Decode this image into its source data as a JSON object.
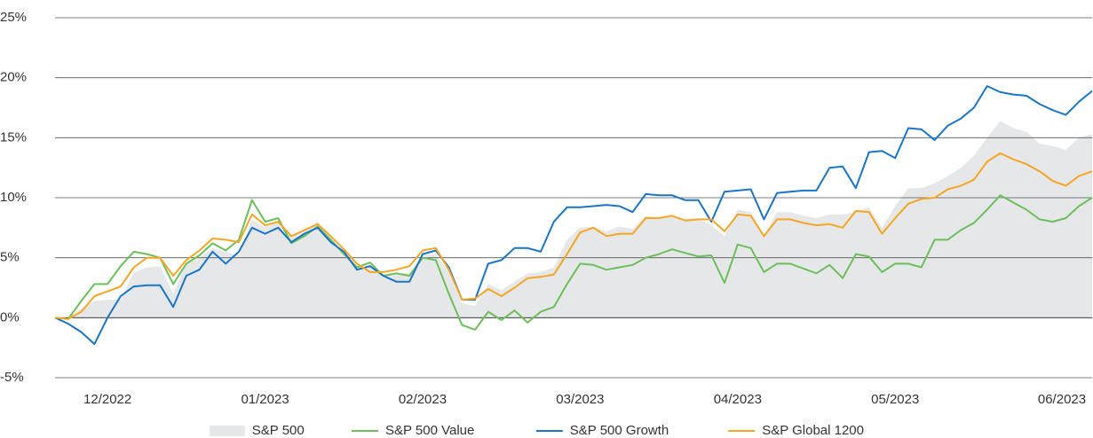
{
  "chart_data": {
    "type": "line",
    "categories": [
      null,
      null,
      null,
      null,
      "12/2022",
      null,
      null,
      null,
      null,
      null,
      null,
      null,
      null,
      null,
      null,
      null,
      "01/2023",
      null,
      null,
      null,
      null,
      null,
      null,
      null,
      null,
      null,
      null,
      null,
      "02/2023",
      null,
      null,
      null,
      null,
      null,
      null,
      null,
      null,
      null,
      null,
      null,
      "03/2023",
      null,
      null,
      null,
      null,
      null,
      null,
      null,
      null,
      null,
      null,
      null,
      "04/2023",
      null,
      null,
      null,
      null,
      null,
      null,
      null,
      null,
      null,
      null,
      null,
      "05/2023",
      null,
      null,
      null,
      null,
      null,
      null,
      null,
      null,
      null,
      null,
      null,
      null,
      "06/2023",
      null,
      null
    ],
    "ylim": [
      -5,
      25
    ],
    "yticks": [
      {
        "value": -5,
        "label": "-5%"
      },
      {
        "value": 0,
        "label": "0%"
      },
      {
        "value": 5,
        "label": "5%"
      },
      {
        "value": 10,
        "label": "10%"
      },
      {
        "value": 15,
        "label": "15%"
      },
      {
        "value": 20,
        "label": "20%"
      },
      {
        "value": 25,
        "label": "25%"
      }
    ],
    "grid": true,
    "legend": "bottom",
    "series": [
      {
        "name": "S&P 500",
        "color": "#e6e7e9",
        "area": true,
        "values": [
          0,
          0,
          0.8,
          1.4,
          1.5,
          1.5,
          3.8,
          4.2,
          4.3,
          2.0,
          4.5,
          5.0,
          5.8,
          5.5,
          5.2,
          8.2,
          7.5,
          8.0,
          6.7,
          7.3,
          8.0,
          6.7,
          5.3,
          4.2,
          4.3,
          3.6,
          3.7,
          3.7,
          5.2,
          5.3,
          3.8,
          1.2,
          1.0,
          2.8,
          2.3,
          3.0,
          3.7,
          3.8,
          4.2,
          6.5,
          7.5,
          7.6,
          7.2,
          7.6,
          7.4,
          8.5,
          8.3,
          8.5,
          8.2,
          8.3,
          7.7,
          6.8,
          9.0,
          8.8,
          6.8,
          8.8,
          8.8,
          8.5,
          8.3,
          8.6,
          8.6,
          8.8,
          9.2,
          7.5,
          9.3,
          10.8,
          10.8,
          11.2,
          11.8,
          12.5,
          13.5,
          15.0,
          16.4,
          15.8,
          15.5,
          14.5,
          14.3,
          14.0,
          15.0,
          15.3
        ]
      },
      {
        "name": "S&P 500 Value",
        "color": "#6cbf5b",
        "values": [
          0,
          -0.1,
          1.4,
          2.8,
          2.8,
          4.3,
          5.5,
          5.3,
          5.0,
          2.8,
          4.5,
          5.2,
          6.2,
          5.6,
          6.5,
          9.8,
          8.0,
          8.3,
          6.2,
          6.8,
          7.6,
          6.5,
          5.3,
          4.2,
          4.6,
          3.5,
          3.7,
          3.5,
          5.0,
          4.8,
          2.0,
          -0.6,
          -1.0,
          0.5,
          -0.2,
          0.6,
          -0.4,
          0.5,
          0.9,
          2.8,
          4.5,
          4.4,
          4.0,
          4.2,
          4.4,
          5.0,
          5.3,
          5.7,
          5.4,
          5.1,
          5.2,
          2.9,
          6.1,
          5.8,
          3.8,
          4.5,
          4.5,
          4.1,
          3.7,
          4.4,
          3.3,
          5.3,
          5.1,
          3.8,
          4.5,
          4.5,
          4.2,
          6.5,
          6.5,
          7.3,
          7.9,
          9.0,
          10.2,
          9.6,
          9.0,
          8.2,
          8.0,
          8.3,
          9.3,
          10.0
        ]
      },
      {
        "name": "S&P 500 Growth",
        "color": "#1a75c7",
        "values": [
          0,
          -0.5,
          -1.2,
          -2.2,
          0,
          1.8,
          2.6,
          2.7,
          2.7,
          0.9,
          3.5,
          4.0,
          5.5,
          4.5,
          5.5,
          7.5,
          7.0,
          7.5,
          6.3,
          7.0,
          7.5,
          6.3,
          5.5,
          4.0,
          4.3,
          3.5,
          3.0,
          3.0,
          5.3,
          5.6,
          4.2,
          1.5,
          1.5,
          4.5,
          4.8,
          5.8,
          5.8,
          5.5,
          8.0,
          9.2,
          9.2,
          9.3,
          9.4,
          9.3,
          8.8,
          10.3,
          10.2,
          10.2,
          9.8,
          9.8,
          8.0,
          10.5,
          10.6,
          10.7,
          8.2,
          10.4,
          10.5,
          10.6,
          10.6,
          12.5,
          12.6,
          10.8,
          13.8,
          13.9,
          13.3,
          15.8,
          15.7,
          14.8,
          16.0,
          16.6,
          17.5,
          19.3,
          18.8,
          18.6,
          18.5,
          17.8,
          17.3,
          16.9,
          18.0,
          18.9
        ]
      },
      {
        "name": "S&P Global 1200",
        "color": "#f5a623",
        "values": [
          0,
          -0.1,
          0.5,
          1.8,
          2.2,
          2.6,
          4.2,
          5.0,
          5.0,
          3.5,
          4.8,
          5.6,
          6.6,
          6.5,
          6.3,
          8.6,
          7.7,
          8.0,
          6.8,
          7.3,
          7.8,
          6.8,
          5.7,
          4.5,
          3.8,
          3.8,
          4.0,
          4.3,
          5.6,
          5.8,
          4.0,
          1.5,
          1.6,
          2.4,
          1.8,
          2.5,
          3.3,
          3.4,
          3.6,
          5.3,
          7.1,
          7.5,
          6.8,
          7.0,
          7.0,
          8.3,
          8.3,
          8.5,
          8.1,
          8.2,
          8.2,
          7.2,
          8.6,
          8.5,
          6.8,
          8.2,
          8.2,
          7.9,
          7.7,
          7.8,
          7.5,
          8.9,
          8.8,
          7.0,
          8.3,
          9.5,
          9.9,
          10.0,
          10.7,
          11.0,
          11.5,
          13.0,
          13.7,
          13.2,
          12.8,
          12.2,
          11.4,
          11.0,
          11.8,
          12.2
        ]
      }
    ]
  }
}
